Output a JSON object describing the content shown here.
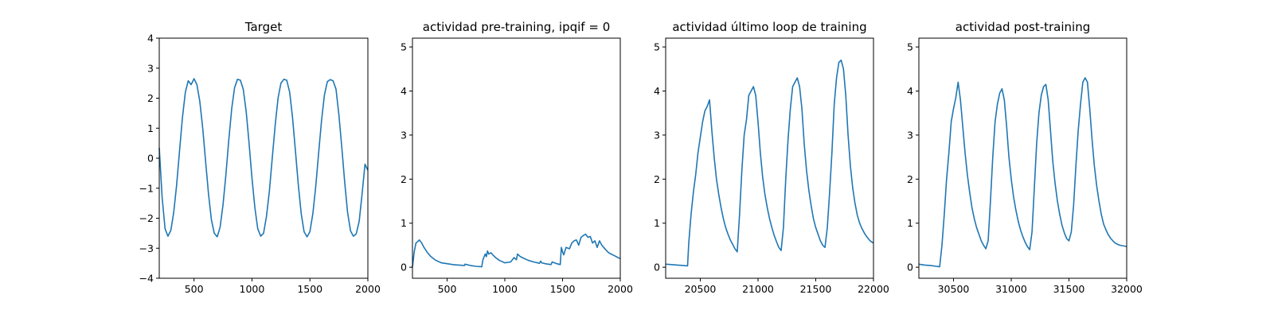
{
  "figure": {
    "background": "#ffffff",
    "line_color": "#1f77b4"
  },
  "chart_data": [
    {
      "type": "line",
      "title": "Target",
      "xlabel": "",
      "ylabel": "",
      "xlim": [
        200,
        2000
      ],
      "ylim": [
        -4,
        4
      ],
      "xticks": [
        500,
        1000,
        1500,
        2000
      ],
      "yticks": [
        -4,
        -3,
        -2,
        -1,
        0,
        1,
        2,
        3,
        4
      ],
      "grid": false,
      "series": [
        {
          "x": [
            200,
            225,
            250,
            275,
            300,
            325,
            350,
            375,
            400,
            425,
            450,
            475,
            500,
            525,
            550,
            575,
            600,
            625,
            650,
            675,
            700,
            725,
            750,
            775,
            800,
            825,
            850,
            875,
            900,
            925,
            950,
            975,
            1000,
            1025,
            1050,
            1075,
            1100,
            1125,
            1150,
            1175,
            1200,
            1225,
            1250,
            1275,
            1300,
            1325,
            1350,
            1375,
            1400,
            1425,
            1450,
            1475,
            1500,
            1525,
            1550,
            1575,
            1600,
            1625,
            1650,
            1675,
            1700,
            1725,
            1750,
            1775,
            1800,
            1825,
            1850,
            1875,
            1900,
            1925,
            1950,
            1975,
            2000
          ],
          "y": [
            0.35,
            -1.3,
            -2.35,
            -2.6,
            -2.4,
            -1.8,
            -0.9,
            0.25,
            1.35,
            2.2,
            2.58,
            2.45,
            2.65,
            2.45,
            1.9,
            1.0,
            -0.1,
            -1.2,
            -2.05,
            -2.5,
            -2.62,
            -2.3,
            -1.55,
            -0.55,
            0.6,
            1.65,
            2.35,
            2.63,
            2.6,
            2.3,
            1.55,
            0.5,
            -0.65,
            -1.65,
            -2.35,
            -2.6,
            -2.5,
            -1.95,
            -1.1,
            0.0,
            1.1,
            2.0,
            2.5,
            2.63,
            2.6,
            2.2,
            1.35,
            0.25,
            -0.9,
            -1.85,
            -2.45,
            -2.62,
            -2.45,
            -1.85,
            -0.95,
            0.15,
            1.25,
            2.1,
            2.55,
            2.62,
            2.58,
            2.3,
            1.45,
            0.35,
            -0.8,
            -1.8,
            -2.42,
            -2.6,
            -2.52,
            -2.1,
            -1.2,
            -0.2,
            -0.4
          ]
        }
      ]
    },
    {
      "type": "line",
      "title": "actividad pre-training, ipqif = 0",
      "xlabel": "",
      "ylabel": "",
      "xlim": [
        200,
        2000
      ],
      "ylim": [
        -0.25,
        5.2
      ],
      "xticks": [
        500,
        1000,
        1500,
        2000
      ],
      "yticks": [
        0,
        1,
        2,
        3,
        4,
        5
      ],
      "grid": false,
      "series": [
        {
          "x": [
            200,
            215,
            230,
            245,
            260,
            280,
            300,
            330,
            360,
            400,
            450,
            500,
            550,
            600,
            650,
            655,
            700,
            750,
            800,
            810,
            830,
            840,
            850,
            860,
            880,
            900,
            920,
            950,
            1000,
            1050,
            1080,
            1100,
            1110,
            1130,
            1150,
            1200,
            1250,
            1300,
            1310,
            1320,
            1350,
            1400,
            1410,
            1430,
            1450,
            1480,
            1490,
            1500,
            1510,
            1530,
            1560,
            1580,
            1600,
            1620,
            1640,
            1660,
            1680,
            1700,
            1720,
            1740,
            1760,
            1780,
            1800,
            1820,
            1840,
            1860,
            1880,
            1900,
            1920,
            1950,
            1980,
            2000
          ],
          "y": [
            0.0,
            0.35,
            0.55,
            0.58,
            0.62,
            0.55,
            0.45,
            0.33,
            0.24,
            0.16,
            0.1,
            0.08,
            0.06,
            0.05,
            0.04,
            0.07,
            0.04,
            0.02,
            0.01,
            0.17,
            0.3,
            0.24,
            0.37,
            0.3,
            0.33,
            0.27,
            0.22,
            0.16,
            0.1,
            0.12,
            0.22,
            0.17,
            0.3,
            0.25,
            0.22,
            0.16,
            0.12,
            0.09,
            0.14,
            0.1,
            0.08,
            0.06,
            0.12,
            0.1,
            0.08,
            0.06,
            0.45,
            0.35,
            0.28,
            0.45,
            0.42,
            0.55,
            0.6,
            0.62,
            0.5,
            0.68,
            0.72,
            0.75,
            0.68,
            0.7,
            0.55,
            0.6,
            0.45,
            0.6,
            0.5,
            0.44,
            0.38,
            0.33,
            0.3,
            0.26,
            0.22,
            0.2
          ]
        }
      ]
    },
    {
      "type": "line",
      "title": "actividad último loop de training",
      "xlabel": "",
      "ylabel": "",
      "xlim": [
        20200,
        22000
      ],
      "ylim": [
        -0.25,
        5.2
      ],
      "xticks": [
        20500,
        21000,
        21500,
        22000
      ],
      "yticks": [
        0,
        1,
        2,
        3,
        4,
        5
      ],
      "grid": false,
      "series": [
        {
          "x": [
            20200,
            20250,
            20300,
            20350,
            20390,
            20400,
            20420,
            20440,
            20460,
            20480,
            20500,
            20520,
            20540,
            20560,
            20580,
            20600,
            20620,
            20640,
            20660,
            20680,
            20700,
            20720,
            20740,
            20760,
            20780,
            20800,
            20820,
            20840,
            20860,
            20880,
            20900,
            20920,
            20940,
            20960,
            20980,
            21000,
            21020,
            21040,
            21060,
            21080,
            21100,
            21120,
            21140,
            21160,
            21180,
            21200,
            21220,
            21240,
            21260,
            21280,
            21300,
            21320,
            21340,
            21360,
            21380,
            21400,
            21420,
            21440,
            21460,
            21480,
            21500,
            21520,
            21540,
            21560,
            21580,
            21600,
            21620,
            21640,
            21660,
            21680,
            21700,
            21720,
            21740,
            21760,
            21780,
            21800,
            21820,
            21840,
            21860,
            21880,
            21900,
            21920,
            21940,
            21960,
            21980,
            22000
          ],
          "y": [
            0.07,
            0.06,
            0.05,
            0.04,
            0.03,
            0.55,
            1.2,
            1.7,
            2.1,
            2.6,
            2.95,
            3.3,
            3.55,
            3.65,
            3.8,
            3.1,
            2.5,
            2.0,
            1.65,
            1.35,
            1.1,
            0.9,
            0.75,
            0.62,
            0.52,
            0.42,
            0.35,
            1.2,
            2.2,
            3.0,
            3.35,
            3.9,
            4.0,
            4.1,
            3.9,
            3.3,
            2.6,
            2.05,
            1.65,
            1.35,
            1.1,
            0.9,
            0.72,
            0.58,
            0.45,
            0.38,
            0.9,
            2.0,
            2.9,
            3.6,
            4.1,
            4.2,
            4.3,
            4.1,
            3.6,
            2.8,
            2.2,
            1.75,
            1.4,
            1.1,
            0.9,
            0.75,
            0.6,
            0.5,
            0.45,
            0.9,
            1.7,
            2.6,
            3.7,
            4.3,
            4.65,
            4.7,
            4.5,
            3.9,
            3.0,
            2.3,
            1.8,
            1.45,
            1.18,
            1.0,
            0.88,
            0.78,
            0.7,
            0.63,
            0.58,
            0.55
          ]
        }
      ]
    },
    {
      "type": "line",
      "title": "actividad post-training",
      "xlabel": "",
      "ylabel": "",
      "xlim": [
        30200,
        32000
      ],
      "ylim": [
        -0.25,
        5.2
      ],
      "xticks": [
        30500,
        31000,
        31500,
        32000
      ],
      "yticks": [
        0,
        1,
        2,
        3,
        4,
        5
      ],
      "grid": false,
      "series": [
        {
          "x": [
            30200,
            30250,
            30300,
            30350,
            30380,
            30400,
            30420,
            30440,
            30460,
            30480,
            30500,
            30520,
            30540,
            30560,
            30580,
            30600,
            30620,
            30640,
            30660,
            30680,
            30700,
            30720,
            30740,
            30760,
            30780,
            30800,
            30820,
            30840,
            30860,
            30880,
            30900,
            30920,
            30940,
            30960,
            30980,
            31000,
            31020,
            31040,
            31060,
            31080,
            31100,
            31120,
            31140,
            31160,
            31180,
            31200,
            31220,
            31240,
            31260,
            31280,
            31300,
            31320,
            31340,
            31360,
            31380,
            31400,
            31420,
            31440,
            31460,
            31480,
            31500,
            31520,
            31540,
            31560,
            31580,
            31600,
            31620,
            31640,
            31660,
            31680,
            31700,
            31720,
            31740,
            31760,
            31780,
            31800,
            31820,
            31840,
            31860,
            31880,
            31900,
            31920,
            31940,
            31960,
            31980,
            32000
          ],
          "y": [
            0.07,
            0.05,
            0.04,
            0.02,
            0.01,
            0.5,
            1.2,
            2.0,
            2.6,
            3.3,
            3.6,
            3.85,
            4.2,
            3.8,
            3.2,
            2.6,
            2.1,
            1.7,
            1.35,
            1.1,
            0.9,
            0.75,
            0.6,
            0.5,
            0.42,
            0.6,
            1.5,
            2.5,
            3.3,
            3.7,
            3.95,
            4.05,
            3.8,
            3.2,
            2.5,
            2.0,
            1.6,
            1.3,
            1.05,
            0.85,
            0.7,
            0.57,
            0.47,
            0.4,
            0.8,
            1.8,
            2.8,
            3.5,
            3.9,
            4.1,
            4.15,
            3.8,
            3.1,
            2.4,
            1.9,
            1.5,
            1.2,
            0.95,
            0.78,
            0.65,
            0.6,
            0.8,
            1.4,
            2.3,
            3.1,
            3.7,
            4.2,
            4.3,
            4.2,
            3.6,
            2.9,
            2.3,
            1.85,
            1.5,
            1.2,
            0.98,
            0.85,
            0.74,
            0.66,
            0.6,
            0.55,
            0.52,
            0.5,
            0.49,
            0.48,
            0.47
          ]
        }
      ]
    }
  ]
}
